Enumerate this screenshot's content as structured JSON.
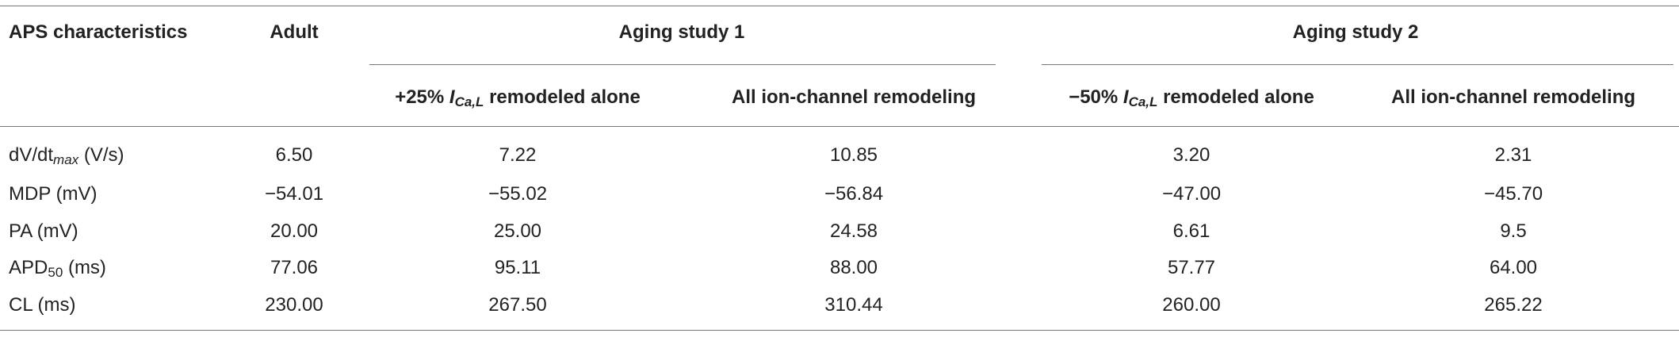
{
  "table": {
    "header": {
      "row_label": "APS characteristics",
      "adult": "Adult",
      "groups": [
        {
          "title": "Aging study 1",
          "columns": [
            [
              "+25% ",
              "I",
              "Ca,L",
              " remodeled alone"
            ],
            [
              "All ion-channel remodeling"
            ]
          ]
        },
        {
          "title": "Aging study 2",
          "columns": [
            [
              "−50% ",
              "I",
              "Ca,L",
              " remodeled alone"
            ],
            [
              "All ion-channel remodeling"
            ]
          ]
        }
      ]
    },
    "rows": [
      {
        "label": [
          "dV/dt",
          "max",
          " (V/s)"
        ],
        "values": [
          "6.50",
          "7.22",
          "10.85",
          "3.20",
          "2.31"
        ]
      },
      {
        "label": [
          "MDP (mV)"
        ],
        "values": [
          "−54.01",
          "−55.02",
          "−56.84",
          "−47.00",
          "−45.70"
        ]
      },
      {
        "label": [
          "PA (mV)"
        ],
        "values": [
          "20.00",
          "25.00",
          "24.58",
          "6.61",
          "9.5"
        ]
      },
      {
        "label": [
          "APD",
          "50",
          " (ms)"
        ],
        "values": [
          "77.06",
          "95.11",
          "88.00",
          "57.77",
          "64.00"
        ]
      },
      {
        "label": [
          "CL (ms)"
        ],
        "values": [
          "230.00",
          "267.50",
          "310.44",
          "260.00",
          "265.22"
        ]
      }
    ]
  }
}
